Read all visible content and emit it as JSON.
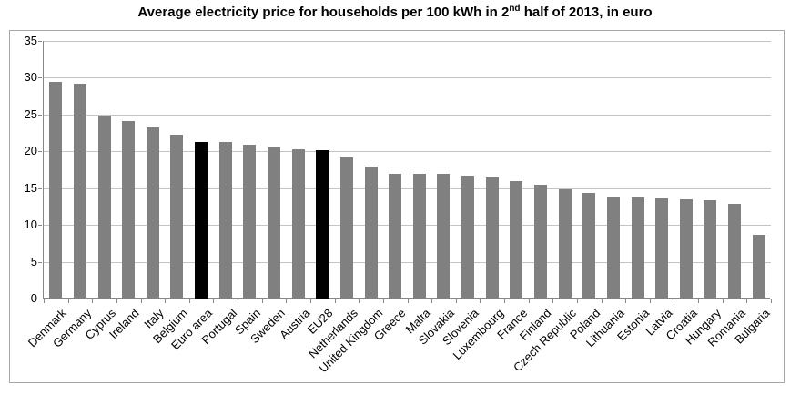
{
  "title": {
    "prefix": "Average electricity price for households per 100 kWh in 2",
    "superscript": "nd",
    "suffix": " half of 2013, in euro"
  },
  "chart_data": {
    "type": "bar",
    "title": "Average electricity price for households per 100 kWh in 2nd half of 2013, in euro",
    "categories": [
      "Denmark",
      "Germany",
      "Cyprus",
      "Ireland",
      "Italy",
      "Belgium",
      "Euro area",
      "Portugal",
      "Spain",
      "Sweden",
      "Austria",
      "EU28",
      "Netherlands",
      "United Kingdom",
      "Greece",
      "Malta",
      "Slovakia",
      "Slovenia",
      "Luxembourg",
      "France",
      "Finland",
      "Czech Republic",
      "Poland",
      "Lithuania",
      "Estonia",
      "Latvia",
      "Croatia",
      "Hungary",
      "Romania",
      "Bulgaria"
    ],
    "values": [
      29.4,
      29.2,
      24.8,
      24.1,
      23.2,
      22.2,
      21.3,
      21.3,
      20.9,
      20.5,
      20.3,
      20.1,
      19.2,
      17.9,
      17.0,
      17.0,
      16.9,
      16.7,
      16.5,
      15.9,
      15.5,
      14.9,
      14.4,
      13.9,
      13.7,
      13.6,
      13.5,
      13.4,
      12.9,
      8.7
    ],
    "highlighted_categories": [
      "Euro area",
      "EU28"
    ],
    "xlabel": "",
    "ylabel": "",
    "ylim": [
      0,
      35
    ],
    "y_ticks": [
      0,
      5,
      10,
      15,
      20,
      25,
      30,
      35
    ],
    "grid": true,
    "legend": false,
    "colors": {
      "bar": "#808080",
      "highlight": "#000000",
      "gridline": "#c4c4c4",
      "axis": "#878787",
      "frame_border": "#a6a6a6",
      "text": "#000000",
      "background": "#ffffff"
    }
  }
}
